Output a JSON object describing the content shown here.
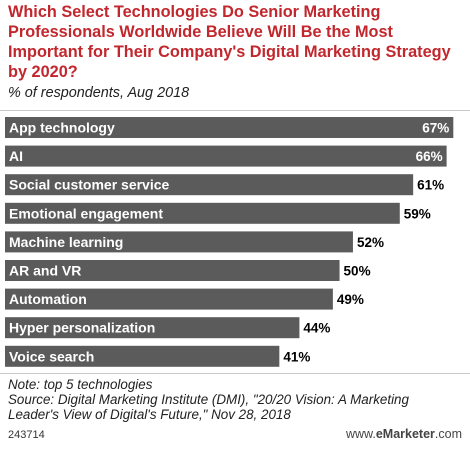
{
  "header": {
    "title": "Which Select Technologies Do Senior Marketing Professionals Worldwide Believe Will Be the Most Important for Their Company's Digital Marketing Strategy by 2020?",
    "subtitle": "% of respondents, Aug 2018"
  },
  "chart_data": {
    "type": "bar",
    "orientation": "horizontal",
    "categories": [
      "App technology",
      "AI",
      "Social customer service",
      "Emotional engagement",
      "Machine learning",
      "AR and VR",
      "Automation",
      "Hyper personalization",
      "Voice search"
    ],
    "values": [
      67,
      66,
      61,
      59,
      52,
      50,
      49,
      44,
      41
    ],
    "value_labels": [
      "67%",
      "66%",
      "61%",
      "59%",
      "52%",
      "50%",
      "49%",
      "44%",
      "41%"
    ],
    "bar_color": "#5b5b5b",
    "xlim": [
      0,
      68
    ],
    "grid": false,
    "legend": "none"
  },
  "footer": {
    "note": "Note: top 5 technologies",
    "source": "Source: Digital Marketing Institute (DMI), \"20/20 Vision: A Marketing Leader's View of Digital's Future,\" Nov 28, 2018",
    "chart_id": "243714",
    "brand_prefix": "www.",
    "brand_name": "eMarketer",
    "brand_suffix": ".com"
  },
  "colors": {
    "title": "#c1272d",
    "bar": "#5b5b5b",
    "bar_label": "#ffffff"
  }
}
